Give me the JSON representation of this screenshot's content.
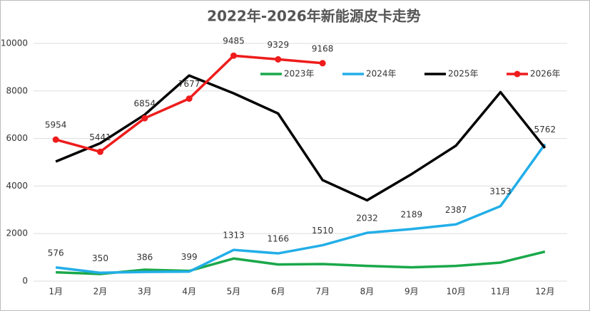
{
  "chart_data": {
    "type": "line",
    "title": "2022年-2026年新能源皮卡走势",
    "categories": [
      "1月",
      "2月",
      "3月",
      "4月",
      "5月",
      "6月",
      "7月",
      "8月",
      "9月",
      "10月",
      "11月",
      "12月"
    ],
    "series": [
      {
        "name": "2023年",
        "color": "#1aa84a",
        "markers": false,
        "data_labels": false,
        "values": [
          370,
          300,
          480,
          430,
          950,
          700,
          720,
          640,
          580,
          640,
          780,
          1240
        ]
      },
      {
        "name": "2024年",
        "color": "#22aee8",
        "markers": false,
        "data_labels": true,
        "values": [
          576,
          350,
          386,
          399,
          1313,
          1166,
          1510,
          2032,
          2189,
          2387,
          3153,
          5762
        ]
      },
      {
        "name": "2025年",
        "color": "#000000",
        "markers": false,
        "data_labels": false,
        "values": [
          5030,
          5800,
          7000,
          8650,
          7900,
          7050,
          4250,
          3400,
          4500,
          5700,
          7950,
          5600
        ]
      },
      {
        "name": "2026年",
        "color": "#ee1c1c",
        "markers": true,
        "data_labels": true,
        "values": [
          5954,
          5441,
          6854,
          7677,
          9485,
          9329,
          9168,
          null,
          null,
          null,
          null,
          null
        ]
      }
    ],
    "ylim": [
      0,
      10000
    ],
    "yticks": [
      0,
      2000,
      4000,
      6000,
      8000,
      10000
    ],
    "grid": true,
    "legend": "top"
  }
}
